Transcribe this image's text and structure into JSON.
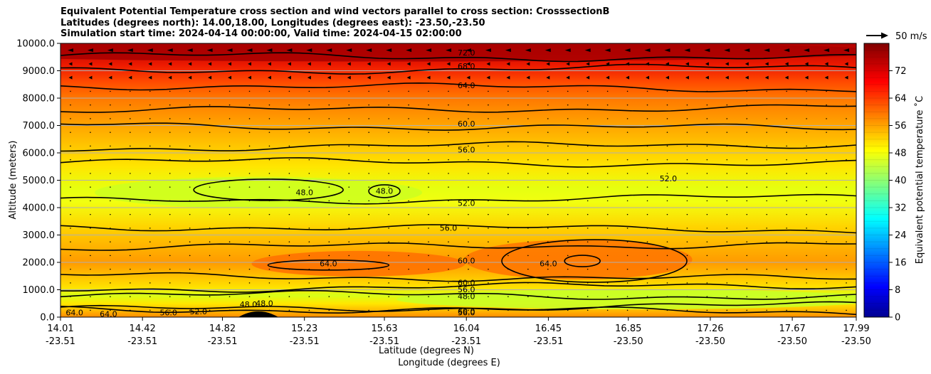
{
  "chart_data": {
    "type": "heatmap",
    "subtype": "filled-contour cross section with contour lines and wind vectors",
    "title_lines": [
      "Equivalent Potential Temperature cross section and wind vectors parallel to cross section: CrosssectionB",
      "Latitudes (degrees north): 14.00,18.00, Longitudes (degrees east): -23.50,-23.50",
      "Simulation start time: 2024-04-14 00:00:00, Valid time: 2024-04-15 02:00:00"
    ],
    "ylabel": "Altitude (meters)",
    "xlabel_lat": "Latitude (degrees N)",
    "xlabel_lon": "Longitude (degrees E)",
    "ylim": [
      0,
      10000
    ],
    "y_ticks": [
      "0.0",
      "1000.0",
      "2000.0",
      "3000.0",
      "4000.0",
      "5000.0",
      "6000.0",
      "7000.0",
      "8000.0",
      "9000.0",
      "10000.0"
    ],
    "x_ticks": [
      {
        "lat": "14.01",
        "lon": "-23.51"
      },
      {
        "lat": "14.42",
        "lon": "-23.51"
      },
      {
        "lat": "14.82",
        "lon": "-23.51"
      },
      {
        "lat": "15.23",
        "lon": "-23.51"
      },
      {
        "lat": "15.63",
        "lon": "-23.51"
      },
      {
        "lat": "16.04",
        "lon": "-23.51"
      },
      {
        "lat": "16.45",
        "lon": "-23.51"
      },
      {
        "lat": "16.85",
        "lon": "-23.50"
      },
      {
        "lat": "17.26",
        "lon": "-23.50"
      },
      {
        "lat": "17.67",
        "lon": "-23.50"
      },
      {
        "lat": "17.99",
        "lon": "-23.50"
      }
    ],
    "xlim": [
      14.01,
      17.99
    ],
    "grid": "horizontal",
    "colorbar": {
      "label": "Equivalent potential temperature ˚C",
      "range": [
        0,
        80
      ],
      "ticks": [
        "0",
        "8",
        "16",
        "24",
        "32",
        "40",
        "48",
        "56",
        "64",
        "72"
      ],
      "colormap": "jet"
    },
    "quiver_key": "50 m/s",
    "contour_labels": [
      {
        "text": "72.0",
        "lat": 16.04,
        "alt": 9650
      },
      {
        "text": "68.0",
        "lat": 16.04,
        "alt": 9150
      },
      {
        "text": "64.0",
        "lat": 16.04,
        "alt": 8450
      },
      {
        "text": "60.0",
        "lat": 16.04,
        "alt": 7050
      },
      {
        "text": "56.0",
        "lat": 16.04,
        "alt": 6100
      },
      {
        "text": "52.0",
        "lat": 17.05,
        "alt": 5050
      },
      {
        "text": "48.0",
        "lat": 15.23,
        "alt": 4550
      },
      {
        "text": "48.0",
        "lat": 15.63,
        "alt": 4600
      },
      {
        "text": "52.0",
        "lat": 16.04,
        "alt": 4150
      },
      {
        "text": "56.0",
        "lat": 15.95,
        "alt": 3250
      },
      {
        "text": "64.0",
        "lat": 15.35,
        "alt": 1950
      },
      {
        "text": "64.0",
        "lat": 16.45,
        "alt": 1950
      },
      {
        "text": "60.0",
        "lat": 16.04,
        "alt": 2050
      },
      {
        "text": "60.0",
        "lat": 16.04,
        "alt": 1250
      },
      {
        "text": "56.0",
        "lat": 16.04,
        "alt": 1000
      },
      {
        "text": "48.0",
        "lat": 16.04,
        "alt": 750
      },
      {
        "text": "52.0",
        "lat": 14.7,
        "alt": 200
      },
      {
        "text": "56.0",
        "lat": 14.55,
        "alt": 150
      },
      {
        "text": "48.0",
        "lat": 14.95,
        "alt": 450
      },
      {
        "text": "48.0",
        "lat": 15.03,
        "alt": 500
      },
      {
        "text": "64.0",
        "lat": 14.08,
        "alt": 150
      },
      {
        "text": "64.0",
        "lat": 14.25,
        "alt": 100
      },
      {
        "text": "60.0",
        "lat": 16.04,
        "alt": 200
      },
      {
        "text": "56.0",
        "lat": 16.04,
        "alt": 150
      }
    ]
  }
}
